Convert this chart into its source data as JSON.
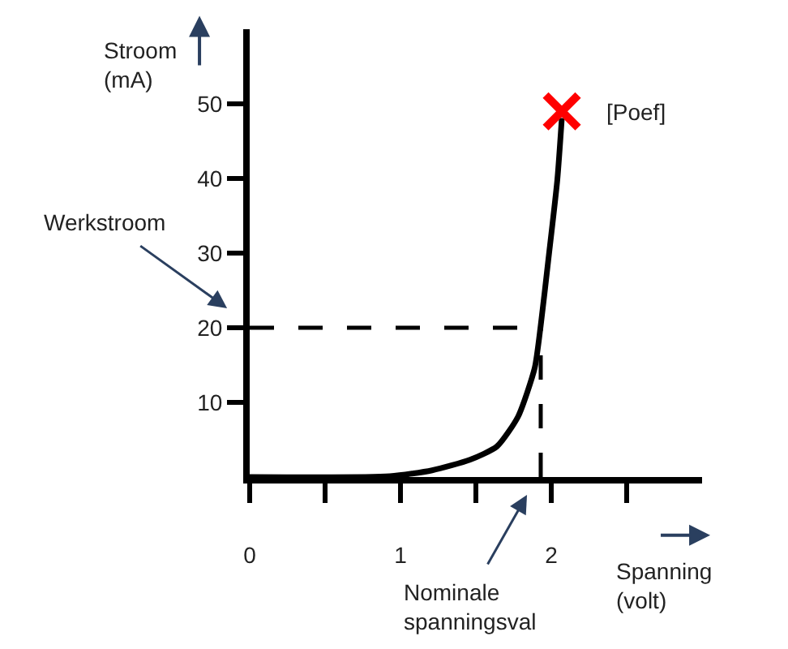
{
  "chart_data": {
    "type": "line",
    "xlabel": "Spanning (volt)",
    "ylabel": "Stroom (mA)",
    "x": [
      0.0,
      0.93,
      1.21,
      1.46,
      1.64,
      1.78,
      1.89,
      1.93,
      1.98,
      2.04,
      2.07
    ],
    "series": [
      {
        "color": "#000000",
        "values": [
          0,
          0.1,
          0.9,
          2.3,
          4.1,
          8.1,
          14.6,
          20.3,
          29,
          39.8,
          48.1
        ],
        "marker": "none",
        "line_style": "solid"
      },
      {
        "type": "scatter",
        "x": [
          2.07
        ],
        "color": "#ff0000",
        "values": [
          49
        ],
        "marker": "cross"
      }
    ],
    "annotations": [
      {
        "text": "[Poef]",
        "x": 2.07,
        "y": 49
      },
      "Werkstroom",
      "Nominale spanningsval"
    ],
    "ref_lines": [
      {
        "axis": "y",
        "value": 20,
        "line_style": "dashed",
        "color": "#000000"
      },
      {
        "axis": "x",
        "value": 1.93,
        "line_style": "dashed",
        "color": "#000000"
      }
    ],
    "xlim": [
      0,
      3
    ],
    "ylim": [
      0,
      60
    ],
    "xticks": [
      {
        "value": 0,
        "label": "0"
      },
      {
        "value": 0.5,
        "label": null
      },
      1,
      {
        "value": 1.5,
        "label": null
      },
      2,
      {
        "value": 2.5,
        "label": null
      }
    ],
    "yticks": [
      10,
      20,
      30,
      40,
      50
    ],
    "grid": false
  }
}
